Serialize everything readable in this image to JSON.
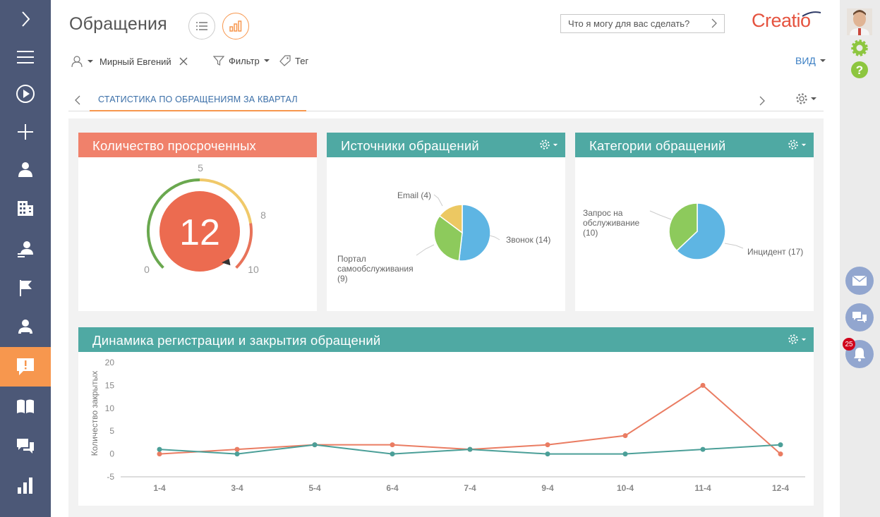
{
  "page": {
    "title": "Обращения",
    "search_placeholder": "Что я могу для вас сделать?",
    "logo": "Creatio"
  },
  "filters": {
    "user": "Мирный Евгений",
    "filter_label": "Фильтр",
    "tag_label": "Тег",
    "view_label": "ВИД"
  },
  "tabs": {
    "active": "СТАТИСТИКА ПО ОБРАЩЕНИЯМ ЗА КВАРТАЛ"
  },
  "icons": {
    "nav": [
      "chevron-right-icon",
      "menu-icon",
      "play-icon",
      "plus-icon",
      "contact-icon",
      "building-icon",
      "agent-icon",
      "flag-icon",
      "person-icon",
      "case-icon",
      "book-icon",
      "chat-icon",
      "chart-icon"
    ],
    "right": [
      "avatar",
      "gear-icon",
      "help-icon",
      "mail-icon",
      "chat-icon",
      "bell-icon"
    ]
  },
  "colors": {
    "nav_bg": "#4c5877",
    "nav_active": "#f7974e",
    "orange": "#f0816b",
    "teal": "#4fa9a3",
    "pie_blue": "#5eb5e3",
    "pie_green": "#8dca5c",
    "pie_yellow": "#ecc862",
    "line_orange": "#ea7c62",
    "line_teal": "#4b9f98"
  },
  "notifications": {
    "count": "25"
  },
  "chart_data": [
    {
      "type": "gauge",
      "title": "Количество просроченных",
      "value": 12,
      "value_label": "12",
      "range": [
        0,
        10
      ],
      "thresholds": [
        5,
        8
      ],
      "labels": {
        "min": "0",
        "t1": "5",
        "t2": "8",
        "max": "10"
      }
    },
    {
      "type": "pie",
      "title": "Источники обращений",
      "slices": [
        {
          "name": "Звонок",
          "value": 14,
          "color": "#5eb5e3",
          "label": "Звонок (14)"
        },
        {
          "name": "Портал самообслуживания",
          "value": 9,
          "color": "#8dca5c",
          "label_lines": [
            "Портал",
            "самообслуживания",
            "(9)"
          ]
        },
        {
          "name": "Email",
          "value": 4,
          "color": "#ecc862",
          "label": "Email (4)"
        }
      ]
    },
    {
      "type": "pie",
      "title": "Категории обращений",
      "slices": [
        {
          "name": "Инцидент",
          "value": 17,
          "color": "#5eb5e3",
          "label": "Инцидент (17)"
        },
        {
          "name": "Запрос на обслуживание",
          "value": 10,
          "color": "#8dca5c",
          "label_lines": [
            "Запрос на",
            "обслуживание",
            "(10)"
          ]
        }
      ]
    },
    {
      "type": "line",
      "title": "Динамика регистрации и закрытия обращений",
      "ylabel": "Количество закрытых",
      "categories": [
        "1-4",
        "3-4",
        "5-4",
        "6-4",
        "7-4",
        "9-4",
        "10-4",
        "11-4",
        "12-4"
      ],
      "ylim": [
        -5,
        20
      ],
      "yticks": [
        "20",
        "15",
        "10",
        "5",
        "0",
        "-5"
      ],
      "series": [
        {
          "color": "#ea7c62",
          "values": [
            0,
            1,
            2,
            2,
            1,
            2,
            4,
            15,
            0
          ]
        },
        {
          "color": "#4b9f98",
          "values": [
            1,
            0,
            2,
            0,
            1,
            0,
            0,
            1,
            2
          ]
        }
      ]
    }
  ]
}
